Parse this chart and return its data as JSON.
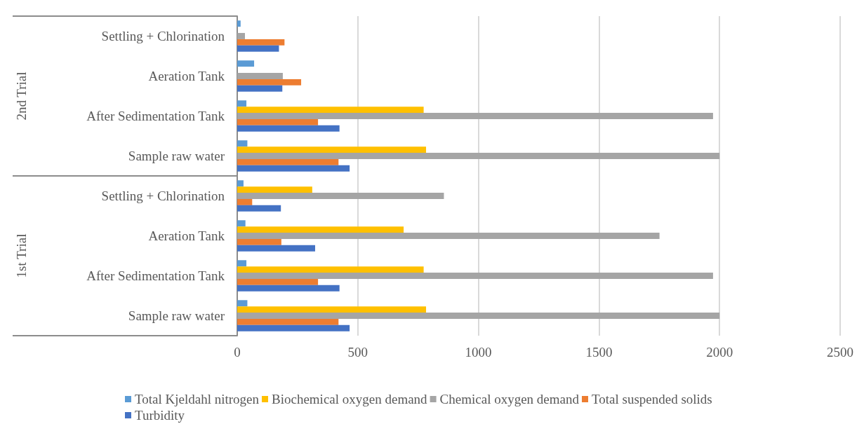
{
  "chart_data": {
    "type": "bar",
    "orientation": "horizontal",
    "categories": [
      "Settling + Chlorination",
      "Aeration Tank",
      "After Sedimentation Tank",
      "Sample raw water",
      "Settling + Chlorination",
      "Aeration Tank",
      "After Sedimentation Tank",
      "Sample raw water"
    ],
    "series": [
      {
        "name": "Total Kjeldahl nitrogen",
        "color": "#5b9bd5",
        "values": [
          14,
          70,
          38,
          42,
          26,
          34,
          38,
          42
        ]
      },
      {
        "name": "Biochemical oxygen demand",
        "color": "#ffc000",
        "values": [
          null,
          null,
          773,
          783,
          311,
          690,
          773,
          783
        ]
      },
      {
        "name": "Chemical oxygen demand",
        "color": "#a5a5a5",
        "values": [
          32,
          189,
          1973,
          2000,
          857,
          1751,
          1973,
          2000
        ]
      },
      {
        "name": "Total suspended solids",
        "color": "#ed7d31",
        "values": [
          196,
          265,
          335,
          420,
          62,
          183,
          335,
          420
        ]
      },
      {
        "name": "Turbidity",
        "color": "#4472c4",
        "values": [
          173,
          187,
          424,
          466,
          181,
          323,
          424,
          466
        ]
      }
    ],
    "annotations": [
      "2nd Trial",
      "1st Trial"
    ],
    "xlim": [
      0,
      2500
    ],
    "xticks": [
      0,
      500,
      1000,
      1500,
      2000,
      2500
    ],
    "grid": "x",
    "legend": "bottom"
  }
}
